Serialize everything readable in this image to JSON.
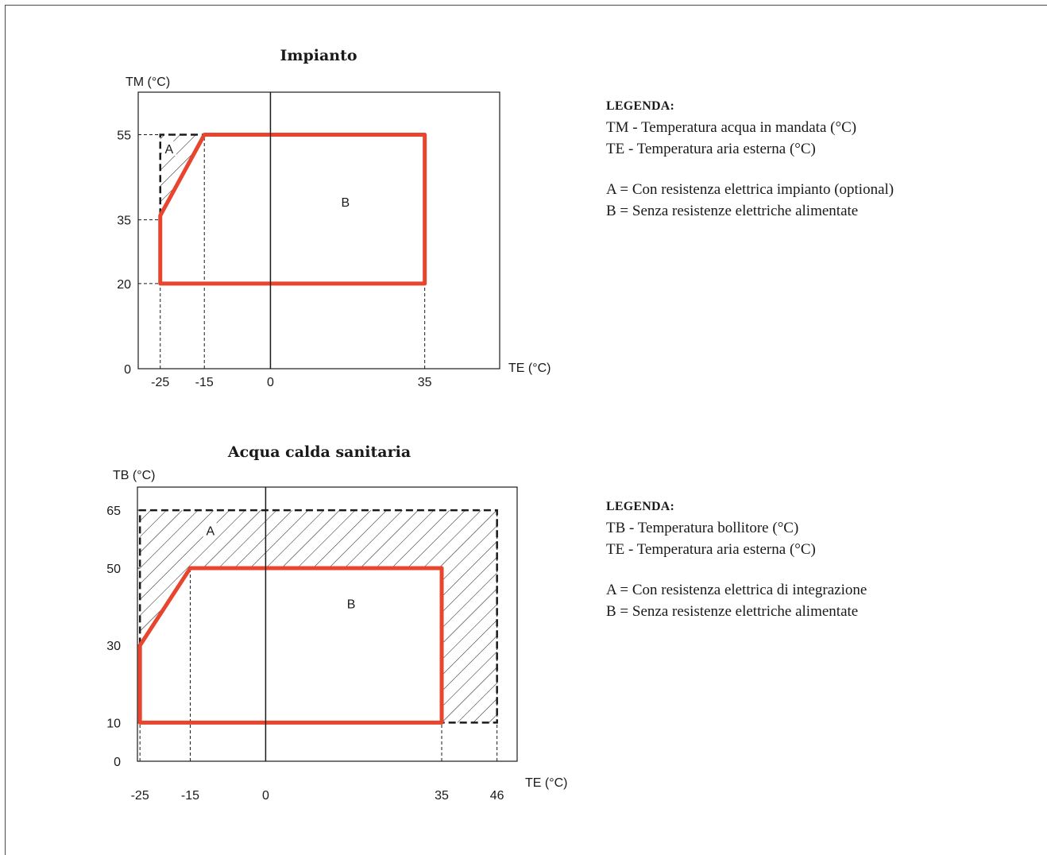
{
  "chart_data": [
    {
      "type": "area",
      "title": "Impianto",
      "ylabel": "TM (°C)",
      "xlabel": "TE (°C)",
      "xlim": [
        -30,
        52
      ],
      "ylim": [
        0,
        65
      ],
      "x_ticks": [
        -25,
        -15,
        0,
        35
      ],
      "y_ticks": [
        0,
        20,
        35,
        55
      ],
      "colors": {
        "region_b_outline": "#e8442e",
        "region_a_outline": "#1a1a1a",
        "axes": "#1a1a1a"
      },
      "regions": [
        {
          "name": "A",
          "style": "dashed-hatched",
          "polygon": [
            [
              -25,
              36
            ],
            [
              -25,
              55
            ],
            [
              -15,
              55
            ]
          ]
        },
        {
          "name": "B",
          "style": "solid-outline",
          "polygon": [
            [
              -25,
              20
            ],
            [
              -25,
              36
            ],
            [
              -15,
              55
            ],
            [
              35,
              55
            ],
            [
              35,
              20
            ]
          ]
        }
      ],
      "region_label_points": [
        {
          "label": "A",
          "x": -23,
          "y": 51
        },
        {
          "label": "B",
          "x": 17,
          "y": 38.5
        }
      ]
    },
    {
      "type": "area",
      "title": "Acqua calda sanitaria",
      "ylabel": "TB (°C)",
      "xlabel": "TE (°C)",
      "xlim": [
        -25.5,
        50
      ],
      "ylim": [
        0,
        71
      ],
      "x_ticks": [
        -25,
        -15,
        0,
        35,
        46
      ],
      "y_ticks": [
        0,
        10,
        30,
        50,
        65
      ],
      "colors": {
        "region_b_outline": "#e8442e",
        "region_a_outline": "#1a1a1a",
        "axes": "#1a1a1a"
      },
      "regions": [
        {
          "name": "A",
          "style": "dashed-hatched",
          "polygon": [
            [
              -25,
              10
            ],
            [
              -25,
              65
            ],
            [
              46,
              65
            ],
            [
              46,
              10
            ]
          ]
        },
        {
          "name": "B",
          "style": "solid-outline",
          "polygon": [
            [
              -25,
              10
            ],
            [
              -25,
              30
            ],
            [
              -15,
              50
            ],
            [
              35,
              50
            ],
            [
              35,
              10
            ]
          ]
        }
      ],
      "region_label_points": [
        {
          "label": "A",
          "x": -11,
          "y": 59
        },
        {
          "label": "B",
          "x": 17,
          "y": 40
        }
      ]
    }
  ],
  "legends": [
    {
      "title": "LEGENDA:",
      "lines": [
        "TM - Temperatura acqua in mandata (°C)",
        "TE - Temperatura aria esterna (°C)"
      ],
      "items": [
        "A = Con resistenza elettrica impianto (optional)",
        "B = Senza resistenze elettriche alimentate"
      ]
    },
    {
      "title": "LEGENDA:",
      "lines": [
        "TB - Temperatura bollitore (°C)",
        "TE - Temperatura aria esterna (°C)"
      ],
      "items": [
        "A = Con resistenza elettrica di integrazione",
        "B = Senza resistenze elettriche alimentate"
      ]
    }
  ]
}
